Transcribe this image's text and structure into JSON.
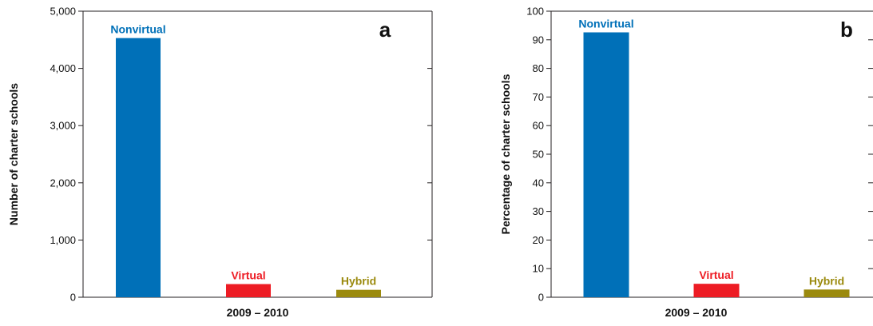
{
  "chart_data": [
    {
      "type": "bar",
      "panel_label": "a",
      "categories": [
        "Nonvirtual",
        "Virtual",
        "Hybrid"
      ],
      "values": [
        4530,
        230,
        130
      ],
      "colors": [
        "#0070b8",
        "#ed1c24",
        "#9b8a0e"
      ],
      "xlabel": "2009 – 2010",
      "ylabel": "Number of charter schools",
      "ylim": [
        0,
        5000
      ],
      "yticks": [
        0,
        1000,
        2000,
        3000,
        4000,
        5000
      ],
      "ytick_labels": [
        "0",
        "1,000",
        "2,000",
        "3,000",
        "4,000",
        "5,000"
      ],
      "grid": false,
      "legend": "none"
    },
    {
      "type": "bar",
      "panel_label": "b",
      "categories": [
        "Nonvirtual",
        "Virtual",
        "Hybrid"
      ],
      "values": [
        92.6,
        4.7,
        2.7
      ],
      "colors": [
        "#0070b8",
        "#ed1c24",
        "#9b8a0e"
      ],
      "xlabel": "2009 – 2010",
      "ylabel": "Percentage of charter schools",
      "ylim": [
        0,
        100
      ],
      "yticks": [
        0,
        10,
        20,
        30,
        40,
        50,
        60,
        70,
        80,
        90,
        100
      ],
      "ytick_labels": [
        "0",
        "10",
        "20",
        "30",
        "40",
        "50",
        "60",
        "70",
        "80",
        "90",
        "100"
      ],
      "grid": false,
      "legend": "none"
    }
  ]
}
